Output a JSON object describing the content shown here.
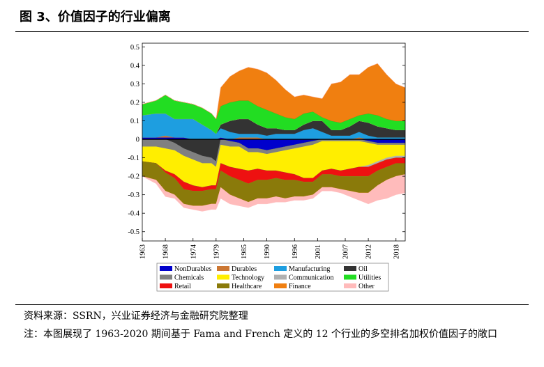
{
  "figure": {
    "title": "图 3、价值因子的行业偏离",
    "source": "资料来源：SSRN，兴业证券经济与金融研究院整理",
    "note": "注：本图展现了 1963-2020 期间基于 Fama and French 定义的 12 个行业的多空排名加权价值因子的敞口"
  },
  "chart_data": {
    "type": "area",
    "title": "",
    "xlabel": "",
    "ylabel": "",
    "x_range": [
      1963,
      2020
    ],
    "ylim": [
      -0.55,
      0.52
    ],
    "x_ticks": [
      "1963",
      "1968",
      "1974",
      "1979",
      "1985",
      "1990",
      "1996",
      "2001",
      "2007",
      "2012",
      "2018"
    ],
    "y_ticks": [
      "0.5",
      "0.4",
      "0.3",
      "0.2",
      "0.1",
      "0",
      "-0.1",
      "-0.2",
      "-0.3",
      "-0.4",
      "-0.5"
    ],
    "stacking": "positive and negative exposures stacked separately",
    "x": [
      1963,
      1966,
      1968,
      1970,
      1972,
      1974,
      1976,
      1978,
      1979,
      1980,
      1982,
      1984,
      1986,
      1988,
      1990,
      1992,
      1994,
      1996,
      1998,
      2000,
      2002,
      2004,
      2006,
      2008,
      2010,
      2012,
      2014,
      2016,
      2018,
      2020
    ],
    "series": [
      {
        "name": "NonDurables",
        "color": "#0000cc",
        "values": [
          0.01,
          0.01,
          0.01,
          0.01,
          0.01,
          0.0,
          0.0,
          0.0,
          0.0,
          0.01,
          -0.01,
          -0.02,
          -0.05,
          -0.05,
          -0.06,
          -0.05,
          -0.04,
          -0.03,
          -0.02,
          -0.01,
          0.0,
          0.0,
          0.0,
          0.0,
          0.0,
          -0.01,
          -0.02,
          -0.02,
          -0.02,
          -0.02
        ]
      },
      {
        "name": "Durables",
        "color": "#cc7733",
        "values": [
          0.0,
          0.0,
          0.01,
          0.0,
          0.0,
          0.0,
          0.0,
          0.0,
          0.0,
          0.0,
          0.0,
          0.01,
          0.01,
          0.01,
          0.0,
          0.0,
          0.0,
          0.0,
          0.0,
          0.0,
          0.0,
          0.0,
          0.0,
          0.0,
          0.01,
          0.0,
          0.0,
          0.0,
          0.0,
          0.0
        ]
      },
      {
        "name": "Manufacturing",
        "color": "#1e9ee0",
        "values": [
          0.12,
          0.13,
          0.12,
          0.1,
          0.1,
          0.11,
          0.08,
          0.05,
          0.03,
          0.05,
          0.04,
          0.02,
          0.02,
          0.02,
          0.02,
          0.03,
          0.03,
          0.03,
          0.05,
          0.06,
          0.04,
          0.02,
          0.02,
          0.02,
          0.03,
          0.02,
          0.01,
          0.01,
          0.01,
          0.01
        ]
      },
      {
        "name": "Oil",
        "color": "#333333",
        "values": [
          0.0,
          0.0,
          0.0,
          -0.02,
          -0.05,
          -0.07,
          -0.09,
          -0.1,
          -0.12,
          0.02,
          0.06,
          0.08,
          0.08,
          0.05,
          0.04,
          0.03,
          0.02,
          0.02,
          0.03,
          0.04,
          0.06,
          0.03,
          0.03,
          0.05,
          0.06,
          0.07,
          0.06,
          0.05,
          0.04,
          0.04
        ]
      },
      {
        "name": "Chemicals",
        "color": "#808080",
        "values": [
          -0.04,
          -0.04,
          -0.05,
          -0.04,
          -0.04,
          -0.04,
          -0.04,
          -0.03,
          -0.03,
          -0.03,
          -0.03,
          -0.02,
          -0.02,
          -0.02,
          -0.02,
          -0.02,
          -0.02,
          -0.02,
          -0.02,
          -0.02,
          -0.01,
          -0.01,
          -0.01,
          -0.01,
          -0.01,
          -0.01,
          -0.01,
          -0.01,
          -0.01,
          -0.01
        ]
      },
      {
        "name": "Technology",
        "color": "#ffee00",
        "values": [
          -0.08,
          -0.09,
          -0.12,
          -0.13,
          -0.14,
          -0.14,
          -0.13,
          -0.12,
          -0.1,
          -0.1,
          -0.11,
          -0.12,
          -0.1,
          -0.09,
          -0.09,
          -0.1,
          -0.12,
          -0.14,
          -0.17,
          -0.18,
          -0.16,
          -0.15,
          -0.16,
          -0.15,
          -0.14,
          -0.12,
          -0.09,
          -0.07,
          -0.06,
          -0.06
        ]
      },
      {
        "name": "Communication",
        "color": "#b0b0b0",
        "values": [
          0.0,
          0.0,
          0.0,
          0.0,
          0.0,
          0.0,
          0.0,
          0.0,
          0.0,
          0.0,
          0.0,
          0.0,
          0.0,
          0.0,
          0.0,
          0.0,
          0.0,
          0.0,
          0.0,
          0.0,
          0.0,
          0.0,
          0.0,
          0.0,
          0.0,
          -0.01,
          -0.01,
          -0.01,
          -0.01,
          -0.01
        ]
      },
      {
        "name": "Utilities",
        "color": "#22dd22",
        "values": [
          0.06,
          0.07,
          0.1,
          0.1,
          0.09,
          0.08,
          0.09,
          0.09,
          0.08,
          0.1,
          0.1,
          0.1,
          0.1,
          0.1,
          0.1,
          0.08,
          0.07,
          0.06,
          0.06,
          0.05,
          0.02,
          0.05,
          0.04,
          0.04,
          0.03,
          0.05,
          0.06,
          0.05,
          0.05,
          0.05
        ]
      },
      {
        "name": "Retail",
        "color": "#ee1111",
        "values": [
          0.0,
          0.0,
          -0.01,
          -0.02,
          -0.04,
          -0.03,
          -0.02,
          -0.02,
          -0.02,
          -0.04,
          -0.05,
          -0.06,
          -0.07,
          -0.06,
          -0.05,
          -0.04,
          -0.04,
          -0.03,
          -0.02,
          -0.02,
          -0.02,
          -0.03,
          -0.03,
          -0.04,
          -0.05,
          -0.05,
          -0.04,
          -0.04,
          -0.03,
          -0.03
        ]
      },
      {
        "name": "Healthcare",
        "color": "#8a7a0a",
        "values": [
          -0.08,
          -0.09,
          -0.1,
          -0.09,
          -0.08,
          -0.08,
          -0.08,
          -0.08,
          -0.08,
          -0.09,
          -0.1,
          -0.1,
          -0.1,
          -0.1,
          -0.1,
          -0.1,
          -0.1,
          -0.09,
          -0.08,
          -0.07,
          -0.07,
          -0.07,
          -0.07,
          -0.08,
          -0.09,
          -0.09,
          -0.08,
          -0.07,
          -0.07,
          -0.06
        ]
      },
      {
        "name": "Finance",
        "color": "#f07f10",
        "values": [
          0.0,
          0.0,
          0.0,
          0.0,
          0.0,
          0.0,
          0.0,
          0.0,
          0.0,
          0.1,
          0.14,
          0.16,
          0.18,
          0.2,
          0.2,
          0.18,
          0.15,
          0.12,
          0.1,
          0.08,
          0.1,
          0.2,
          0.22,
          0.24,
          0.22,
          0.25,
          0.28,
          0.24,
          0.2,
          0.18
        ]
      },
      {
        "name": "Other",
        "color": "#ffbbbb",
        "values": [
          0.0,
          -0.02,
          -0.03,
          -0.02,
          -0.02,
          -0.02,
          -0.03,
          -0.03,
          -0.03,
          -0.06,
          -0.05,
          -0.04,
          -0.03,
          -0.03,
          -0.03,
          -0.03,
          -0.02,
          -0.02,
          -0.02,
          -0.02,
          -0.02,
          -0.02,
          -0.02,
          -0.03,
          -0.04,
          -0.06,
          -0.08,
          -0.1,
          -0.1,
          -0.1
        ]
      }
    ],
    "legend": {
      "placement": "bottom",
      "entries": [
        "NonDurables",
        "Durables",
        "Manufacturing",
        "Oil",
        "Chemicals",
        "Technology",
        "Communication",
        "Utilities",
        "Retail",
        "Healthcare",
        "Finance",
        "Other"
      ]
    }
  }
}
